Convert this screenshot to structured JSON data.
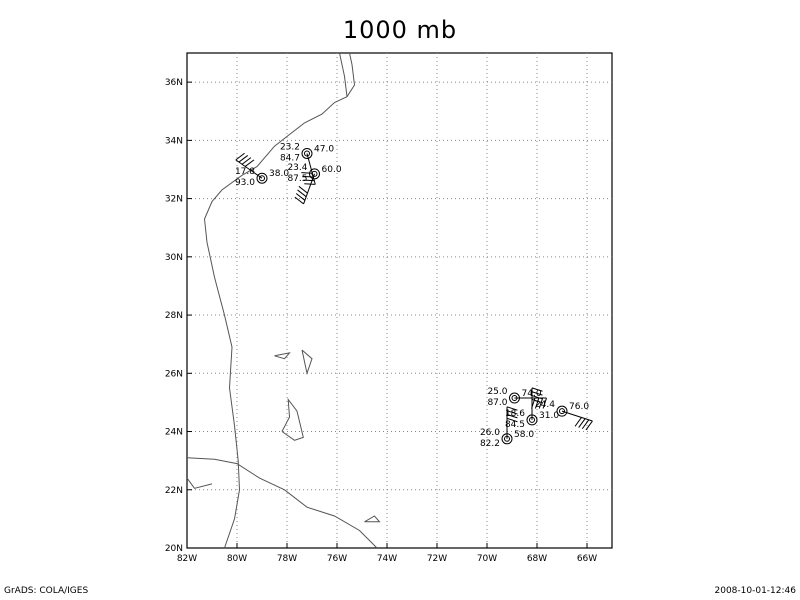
{
  "title": "1000 mb",
  "footer": {
    "left": "GrADS: COLA/IGES",
    "right": "2008-10-01-12:46"
  },
  "map": {
    "lon_range": [
      -82,
      -65
    ],
    "lat_range": [
      20,
      37
    ],
    "lon_ticks": [
      {
        "value": -82,
        "label": "82W"
      },
      {
        "value": -80,
        "label": "80W"
      },
      {
        "value": -78,
        "label": "78W"
      },
      {
        "value": -76,
        "label": "76W"
      },
      {
        "value": -74,
        "label": "74W"
      },
      {
        "value": -72,
        "label": "72W"
      },
      {
        "value": -70,
        "label": "70W"
      },
      {
        "value": -68,
        "label": "68W"
      },
      {
        "value": -66,
        "label": "66W"
      }
    ],
    "lat_ticks": [
      {
        "value": 20,
        "label": "20N"
      },
      {
        "value": 22,
        "label": "22N"
      },
      {
        "value": 24,
        "label": "24N"
      },
      {
        "value": 26,
        "label": "26N"
      },
      {
        "value": 28,
        "label": "28N"
      },
      {
        "value": 30,
        "label": "30N"
      },
      {
        "value": 32,
        "label": "32N"
      },
      {
        "value": 34,
        "label": "34N"
      },
      {
        "value": 36,
        "label": "36N"
      }
    ],
    "coastlines": [
      [
        [
          -80.5,
          20.0
        ],
        [
          -80.1,
          21.0
        ],
        [
          -79.9,
          22.0
        ],
        [
          -79.95,
          23.0
        ],
        [
          -80.1,
          24.2
        ],
        [
          -80.3,
          25.5
        ],
        [
          -80.2,
          26.9
        ],
        [
          -80.5,
          28.0
        ],
        [
          -80.9,
          29.3
        ],
        [
          -81.2,
          30.5
        ],
        [
          -81.3,
          31.3
        ],
        [
          -81.0,
          31.9
        ],
        [
          -80.6,
          32.3
        ],
        [
          -79.8,
          32.8
        ],
        [
          -79.2,
          33.1
        ],
        [
          -78.5,
          33.8
        ],
        [
          -77.9,
          34.2
        ],
        [
          -77.3,
          34.6
        ],
        [
          -76.6,
          34.9
        ],
        [
          -76.1,
          35.3
        ],
        [
          -75.6,
          35.5
        ],
        [
          -75.7,
          36.2
        ],
        [
          -75.9,
          37.0
        ]
      ],
      [
        [
          -75.6,
          35.5
        ],
        [
          -75.3,
          35.9
        ],
        [
          -75.4,
          36.6
        ],
        [
          -75.5,
          37.0
        ]
      ],
      [
        [
          -82.0,
          23.1
        ],
        [
          -80.9,
          23.05
        ],
        [
          -80.0,
          22.9
        ],
        [
          -79.1,
          22.4
        ],
        [
          -78.1,
          22.0
        ],
        [
          -77.2,
          21.4
        ],
        [
          -76.1,
          21.1
        ],
        [
          -75.1,
          20.6
        ],
        [
          -74.4,
          20.0
        ]
      ],
      [
        [
          -82.0,
          22.4
        ],
        [
          -81.7,
          22.05
        ],
        [
          -81.0,
          22.2
        ]
      ],
      [
        [
          -78.2,
          24.0
        ],
        [
          -77.9,
          24.5
        ],
        [
          -77.95,
          25.1
        ],
        [
          -77.6,
          24.7
        ],
        [
          -77.35,
          23.8
        ],
        [
          -77.7,
          23.7
        ],
        [
          -78.2,
          24.0
        ]
      ],
      [
        [
          -78.5,
          26.6
        ],
        [
          -78.1,
          26.5
        ],
        [
          -77.9,
          26.7
        ],
        [
          -78.5,
          26.6
        ]
      ],
      [
        [
          -77.4,
          26.8
        ],
        [
          -77.2,
          26.0
        ],
        [
          -77.0,
          26.5
        ],
        [
          -77.4,
          26.8
        ]
      ],
      [
        [
          -74.9,
          20.9
        ],
        [
          -74.5,
          21.1
        ],
        [
          -74.3,
          20.9
        ],
        [
          -74.9,
          20.9
        ]
      ]
    ],
    "stations": [
      {
        "lon": -77.2,
        "lat": 33.55,
        "temp": "23.2",
        "rh": "84.7",
        "dir": "47.0",
        "barb_angle": 165
      },
      {
        "lon": -76.9,
        "lat": 32.85,
        "temp": "23.4",
        "rh": "87.5",
        "dir": "60.0",
        "barb_angle": 200
      },
      {
        "lon": -79.0,
        "lat": 32.7,
        "temp": "17.8",
        "rh": "93.0",
        "dir": "38.0",
        "barb_angle": 305
      },
      {
        "lon": -68.9,
        "lat": 25.15,
        "temp": "25.0",
        "rh": "87.0",
        "dir": "74.0",
        "barb_angle": 90
      },
      {
        "lon": -67.0,
        "lat": 24.7,
        "temp": "24.4",
        "rh": "",
        "dir": "76.0",
        "barb_angle": 108
      },
      {
        "lon": -68.2,
        "lat": 24.4,
        "temp": "18.6",
        "rh": "84.5",
        "dir": "31.0",
        "barb_angle": 0
      },
      {
        "lon": -69.2,
        "lat": 23.75,
        "temp": "26.0",
        "rh": "82.2",
        "dir": "58.0",
        "barb_angle": 0
      }
    ]
  }
}
